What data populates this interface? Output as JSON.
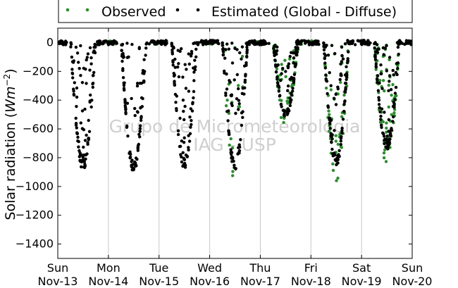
{
  "chart_data": {
    "type": "scatter",
    "ylabel_prefix": "Solar radiation (",
    "ylabel_unit_base": "Wm",
    "ylabel_unit_exp": "−2",
    "ylabel_suffix": ")",
    "ylim": [
      -1500,
      100
    ],
    "yticks": [
      0,
      -200,
      -400,
      -600,
      -800,
      -1000,
      -1200,
      -1400
    ],
    "xlim": [
      0,
      7
    ],
    "xticks": [
      {
        "pos": 0,
        "day": "Sun",
        "date": "Nov-13"
      },
      {
        "pos": 1,
        "day": "Mon",
        "date": "Nov-14"
      },
      {
        "pos": 2,
        "day": "Tue",
        "date": "Nov-15"
      },
      {
        "pos": 3,
        "day": "Wed",
        "date": "Nov-16"
      },
      {
        "pos": 4,
        "day": "Thu",
        "date": "Nov-17"
      },
      {
        "pos": 5,
        "day": "Fri",
        "date": "Nov-18"
      },
      {
        "pos": 6,
        "day": "Sat",
        "date": "Nov-19"
      },
      {
        "pos": 7,
        "day": "Sun",
        "date": "Nov-20"
      }
    ],
    "grid": "vertical",
    "legend_position": "top",
    "series": [
      {
        "name": "Observed",
        "color": "#2e8b2e"
      },
      {
        "name": "Estimated (Global - Diffuse)",
        "color": "#000000"
      }
    ],
    "daily_profiles": [
      {
        "day": 0,
        "peak": -890,
        "obs_extra": 0
      },
      {
        "day": 1,
        "peak": -905,
        "obs_extra": 0
      },
      {
        "day": 2,
        "peak": -875,
        "obs_extra": 0
      },
      {
        "day": 3,
        "peak": -890,
        "obs_extra": 0.25
      },
      {
        "day": 4,
        "peak": -520,
        "obs_extra": 0.5
      },
      {
        "day": 5,
        "peak": -860,
        "obs_extra": 0.6
      },
      {
        "day": 6,
        "peak": -750,
        "obs_extra": 0.7
      }
    ]
  },
  "watermark": {
    "line1": "Grupo de Micrometeorologia",
    "line2": "IAG - USP"
  }
}
